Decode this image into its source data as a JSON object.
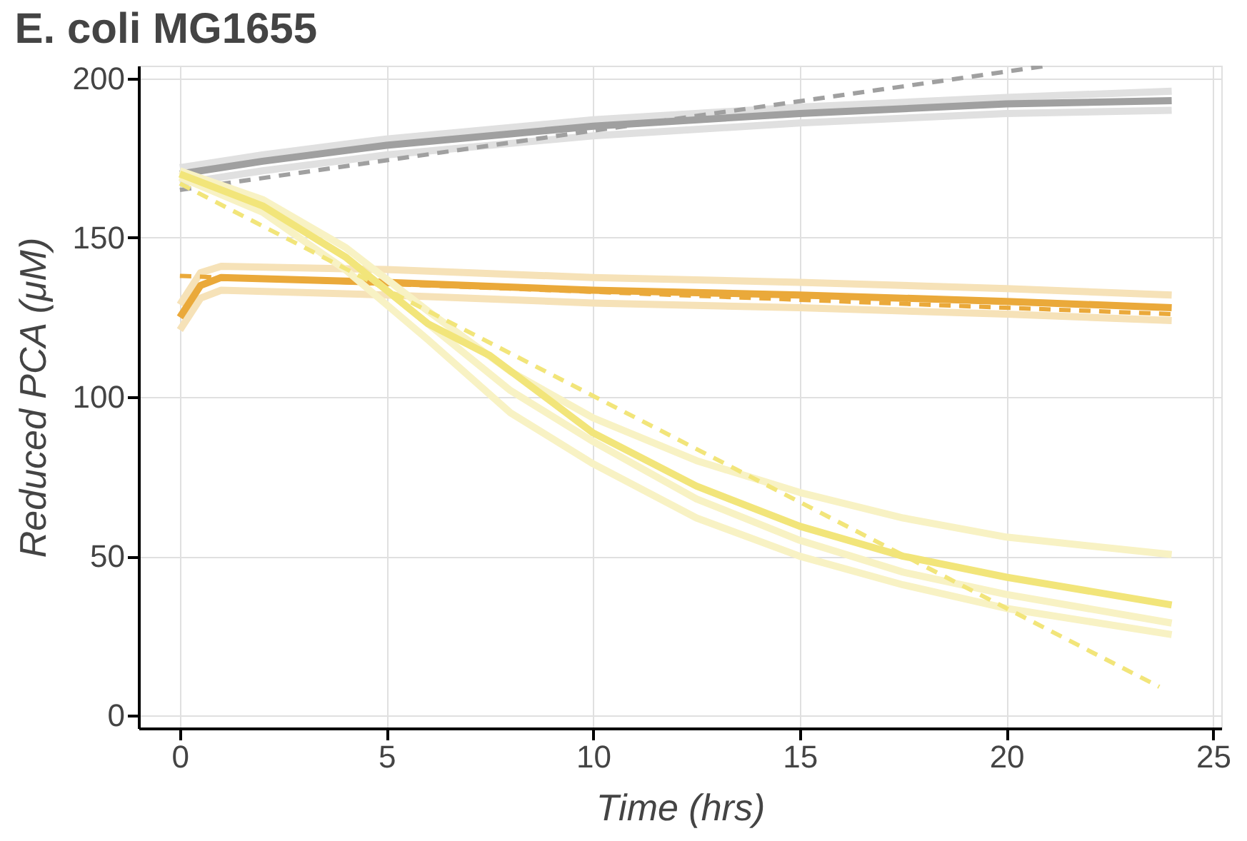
{
  "chart_data": {
    "type": "line",
    "title": "E. coli MG1655",
    "xlabel": "Time (hrs)",
    "ylabel": "Reduced PCA (μM)",
    "xlim": [
      -1,
      25.2
    ],
    "xticks": [
      0,
      5,
      10,
      15,
      20,
      25
    ],
    "ylim": [
      -4,
      204
    ],
    "yticks": [
      0,
      50,
      100,
      150,
      200
    ],
    "grid": true,
    "marker": "none",
    "series": [
      {
        "color": "#e0e0e0",
        "line_style": "solid",
        "x": [
          0,
          2,
          5,
          10,
          15,
          20,
          24
        ],
        "values": [
          172,
          176,
          181,
          187,
          191,
          194,
          196
        ]
      },
      {
        "color": "#e0e0e0",
        "line_style": "solid",
        "x": [
          0,
          2,
          5,
          10,
          15,
          20,
          24
        ],
        "values": [
          167,
          171,
          176,
          182,
          186,
          189,
          190
        ]
      },
      {
        "color": "#a0a0a0",
        "line_style": "solid",
        "x": [
          0,
          2,
          5,
          10,
          15,
          20,
          24
        ],
        "values": [
          170,
          174,
          179,
          185,
          189,
          192,
          193
        ]
      },
      {
        "color": "#a0a0a0",
        "line_style": "dashed",
        "x": [
          0,
          21
        ],
        "values": [
          165,
          204
        ]
      },
      {
        "color": "#f6e2b8",
        "line_style": "solid",
        "x": [
          0,
          0.5,
          1,
          5,
          10,
          15,
          20,
          24
        ],
        "values": [
          129,
          139,
          141,
          140,
          137.5,
          136,
          134,
          132
        ]
      },
      {
        "color": "#f6e2b8",
        "line_style": "solid",
        "x": [
          0,
          0.5,
          1,
          5,
          10,
          15,
          20,
          24
        ],
        "values": [
          121,
          131,
          133.5,
          132,
          129.5,
          128,
          126,
          124
        ]
      },
      {
        "color": "#eaa93a",
        "line_style": "solid",
        "x": [
          0,
          0.5,
          1,
          5,
          10,
          15,
          20,
          24
        ],
        "values": [
          125,
          135,
          137.5,
          136,
          133.5,
          132,
          130,
          128
        ]
      },
      {
        "color": "#eaa93a",
        "line_style": "dashed",
        "x": [
          0,
          24
        ],
        "values": [
          138,
          126
        ]
      },
      {
        "color": "#f8f2c4",
        "line_style": "solid",
        "x": [
          0,
          2,
          4,
          6,
          8,
          10,
          12.5,
          15,
          17.5,
          20,
          24
        ],
        "values": [
          171,
          162,
          147,
          127,
          108,
          93.4,
          80,
          70,
          62,
          56,
          50.5
        ]
      },
      {
        "color": "#f8f2c4",
        "line_style": "solid",
        "x": [
          0,
          2,
          4,
          6,
          8,
          10,
          12.5,
          15,
          17.5,
          20,
          24
        ],
        "values": [
          169,
          158,
          140,
          118,
          95,
          79,
          62,
          50,
          41,
          33.6,
          25.4
        ]
      },
      {
        "color": "#f8f2c4",
        "line_style": "solid",
        "x": [
          0,
          2,
          4,
          6,
          8,
          10,
          12.5,
          15,
          17.5,
          20,
          24
        ],
        "values": [
          170,
          160,
          144,
          123,
          102,
          86,
          68,
          55,
          45,
          38,
          29
        ]
      },
      {
        "color": "#f2e57a",
        "line_style": "solid",
        "x": [
          0,
          2,
          4,
          6,
          7.5,
          10,
          12.5,
          15,
          17.5,
          20,
          24
        ],
        "values": [
          170,
          160,
          144,
          123,
          113,
          88.7,
          72,
          59.4,
          50,
          43.4,
          34.7
        ]
      },
      {
        "color": "#f2e57a",
        "line_style": "dashed",
        "x": [
          0,
          23.7
        ],
        "values": [
          167,
          9
        ]
      }
    ]
  }
}
